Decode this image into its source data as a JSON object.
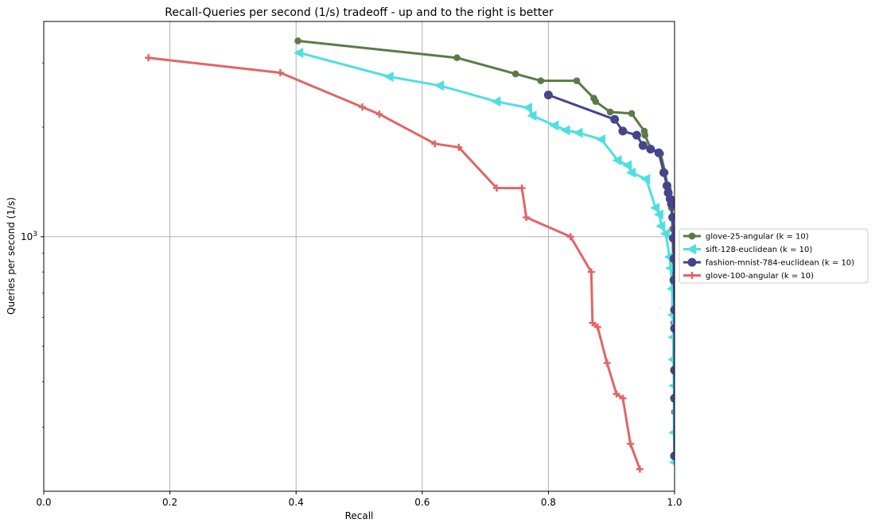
{
  "chart_data": {
    "type": "line",
    "title": "Recall-Queries per second (1/s) tradeoff - up and to the right is better",
    "xlabel": "Recall",
    "ylabel": "Queries per second (1/s)",
    "xlim": [
      0.0,
      1.0
    ],
    "y_scale": "log",
    "ylim": [
      200,
      3900
    ],
    "x_ticks": [
      0.0,
      0.2,
      0.4,
      0.6,
      0.8,
      1.0
    ],
    "x_tick_labels": [
      "0.0",
      "0.2",
      "0.4",
      "0.6",
      "0.8",
      "1.0"
    ],
    "y_ticks": [
      1000
    ],
    "y_tick_labels": [
      "10^3"
    ],
    "grid": true,
    "legend_position": "right, outside the plot area",
    "series": [
      {
        "name": "glove-25-angular (k = 10)",
        "color": "#5b7a47",
        "marker": "octagon",
        "x": [
          0.403,
          0.655,
          0.748,
          0.788,
          0.845,
          0.872,
          0.875,
          0.898,
          0.932,
          0.952,
          0.953,
          0.962,
          0.978,
          0.985,
          0.99,
          0.995,
          0.997,
          0.998,
          0.999,
          0.999,
          1.0
        ],
        "y": [
          3450,
          3100,
          2800,
          2680,
          2680,
          2400,
          2350,
          2200,
          2180,
          1950,
          1900,
          1750,
          1690,
          1500,
          1350,
          1200,
          1050,
          800,
          580,
          460,
          330
        ]
      },
      {
        "name": "sift-128-euclidean (k = 10)",
        "color": "#4fdfe0",
        "marker": "triangle-left",
        "x": [
          0.405,
          0.548,
          0.628,
          0.718,
          0.768,
          0.775,
          0.81,
          0.828,
          0.848,
          0.884,
          0.91,
          0.926,
          0.932,
          0.955,
          0.97,
          0.976,
          0.979,
          0.986,
          0.992,
          0.994,
          0.996,
          0.997,
          0.998,
          0.998,
          0.999,
          0.999,
          1.0
        ],
        "y": [
          3200,
          2750,
          2600,
          2350,
          2260,
          2150,
          2020,
          1960,
          1930,
          1850,
          1620,
          1570,
          1500,
          1440,
          1200,
          1150,
          1070,
          1020,
          880,
          820,
          720,
          610,
          530,
          460,
          390,
          290,
          240
        ]
      },
      {
        "name": "fashion-mnist-784-euclidean (k = 10)",
        "color": "#45458c",
        "marker": "circle",
        "x": [
          0.8,
          0.905,
          0.918,
          0.94,
          0.95,
          0.962,
          0.975,
          0.983,
          0.988,
          0.99,
          0.993,
          0.995,
          0.997,
          0.998,
          0.999,
          0.999,
          1.0,
          1.0,
          1.0,
          1.0,
          1.0
        ],
        "y": [
          2450,
          2100,
          1950,
          1900,
          1780,
          1740,
          1700,
          1500,
          1380,
          1320,
          1270,
          1230,
          1130,
          990,
          870,
          760,
          630,
          560,
          430,
          360,
          250
        ]
      },
      {
        "name": "glove-100-angular (k = 10)",
        "color": "#e06666",
        "marker": "plus",
        "x": [
          0.166,
          0.375,
          0.505,
          0.532,
          0.62,
          0.658,
          0.718,
          0.758,
          0.765,
          0.835,
          0.868,
          0.87,
          0.878,
          0.893,
          0.908,
          0.918,
          0.93,
          0.945
        ],
        "y": [
          3100,
          2820,
          2270,
          2170,
          1800,
          1760,
          1360,
          1360,
          1130,
          1000,
          800,
          580,
          565,
          450,
          370,
          360,
          270,
          230
        ]
      }
    ]
  }
}
